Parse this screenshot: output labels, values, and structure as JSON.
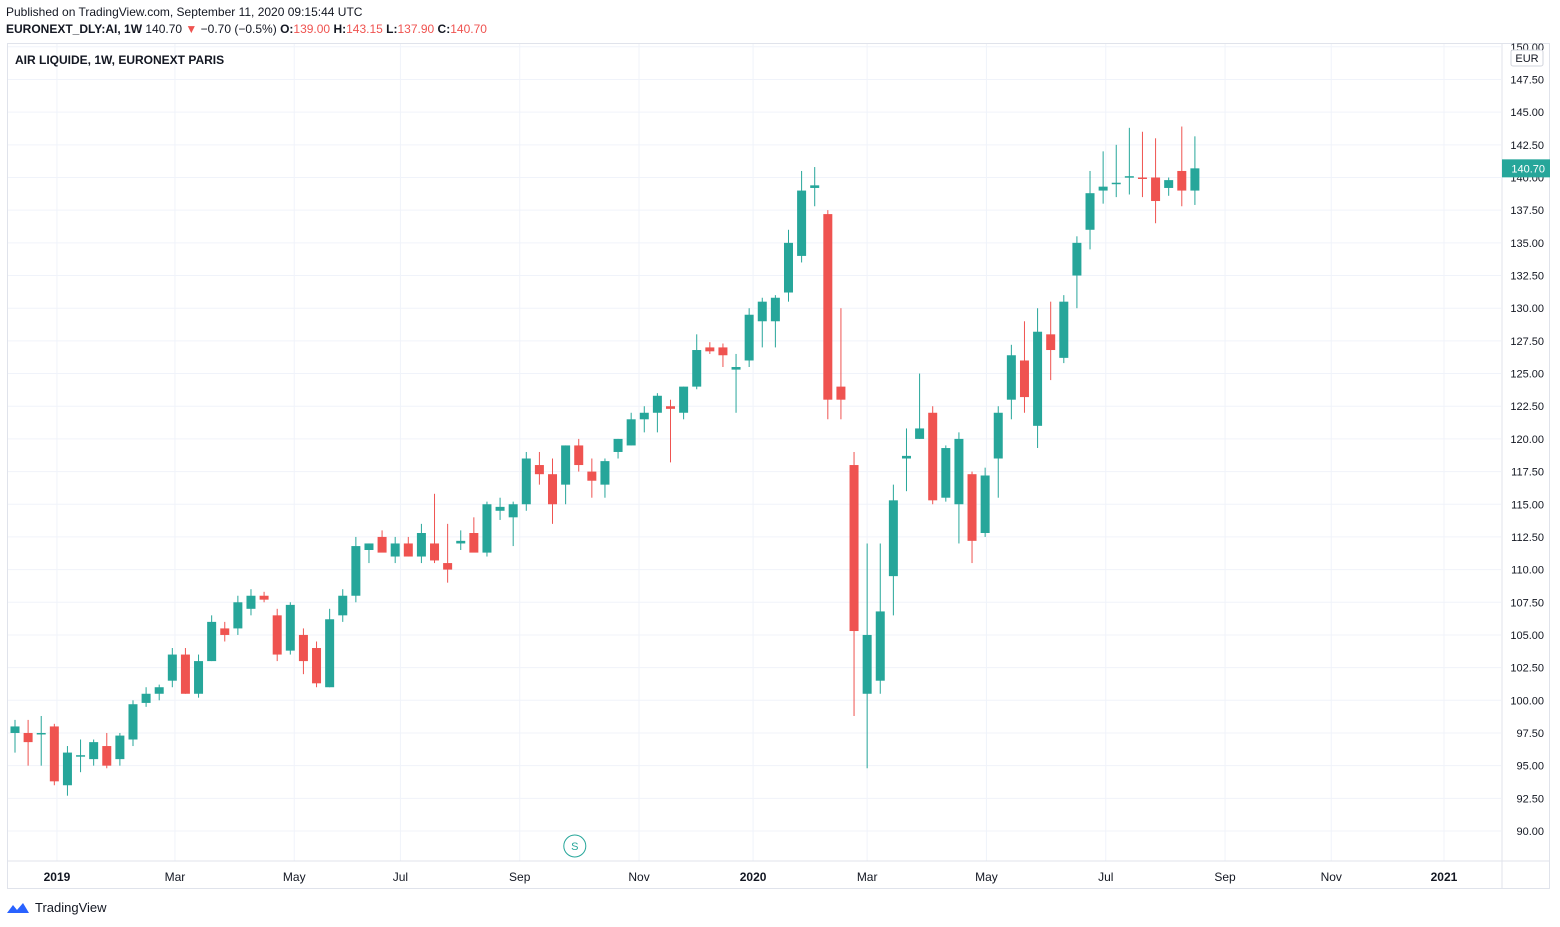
{
  "header": {
    "published": "Published on TradingView.com, September 11, 2020 09:15:44 UTC",
    "symbol": "EURONEXT_DLY:AI, 1W",
    "last": "140.70",
    "arrow": "▼",
    "change": "−0.70 (−0.5%)",
    "o_label": "O:",
    "o_value": "139.00",
    "h_label": "H:",
    "h_value": "143.15",
    "l_label": "L:",
    "l_value": "137.90",
    "c_label": "C:",
    "c_value": "140.70"
  },
  "footer": {
    "brand": "TradingView"
  },
  "colors": {
    "up": "#26a69a",
    "down": "#ef5350",
    "grid": "#f0f3fa",
    "text": "#131722"
  },
  "chart_data": {
    "type": "candlestick",
    "title": "AIR LIQUIDE, 1W, EURONEXT PARIS",
    "currency": "EUR",
    "last_price_label": "140.70",
    "ylim": [
      88.5,
      150
    ],
    "yticks": [
      90,
      92.5,
      95,
      97.5,
      100,
      102.5,
      105,
      107.5,
      110,
      112.5,
      115,
      117.5,
      120,
      122.5,
      125,
      127.5,
      130,
      132.5,
      135,
      137.5,
      140,
      142.5,
      145,
      147.5,
      150
    ],
    "xtick_labels": [
      {
        "label": "2019",
        "week": 3.2,
        "bold": true
      },
      {
        "label": "Mar",
        "week": 12.2
      },
      {
        "label": "May",
        "week": 21.3
      },
      {
        "label": "Jul",
        "week": 29.4
      },
      {
        "label": "Sep",
        "week": 38.5
      },
      {
        "label": "Nov",
        "week": 47.6
      },
      {
        "label": "2020",
        "week": 56.3,
        "bold": true
      },
      {
        "label": "Mar",
        "week": 65.0
      },
      {
        "label": "May",
        "week": 74.1
      },
      {
        "label": "Jul",
        "week": 83.2
      },
      {
        "label": "Sep",
        "week": 92.3
      },
      {
        "label": "Nov",
        "week": 100.4
      },
      {
        "label": "2021",
        "week": 109.0,
        "bold": true
      }
    ],
    "event_marker": {
      "label": "S",
      "week": 42.7
    },
    "candles": [
      [
        97.5,
        98.5,
        96.0,
        98.0
      ],
      [
        97.5,
        98.5,
        95.0,
        96.8
      ],
      [
        97.5,
        98.8,
        95.0,
        97.5
      ],
      [
        98.0,
        98.2,
        93.5,
        93.8
      ],
      [
        93.5,
        96.5,
        92.7,
        96.0
      ],
      [
        95.8,
        97.0,
        94.5,
        95.8
      ],
      [
        95.5,
        97.0,
        95.0,
        96.8
      ],
      [
        96.5,
        97.5,
        94.8,
        95.0
      ],
      [
        95.5,
        97.5,
        95.0,
        97.3
      ],
      [
        97.0,
        100.0,
        96.5,
        99.7
      ],
      [
        99.8,
        101.0,
        99.5,
        100.5
      ],
      [
        100.5,
        101.2,
        100.0,
        101.0
      ],
      [
        101.5,
        104.0,
        101.0,
        103.5
      ],
      [
        103.5,
        104.0,
        100.5,
        100.5
      ],
      [
        100.5,
        103.5,
        100.2,
        103.0
      ],
      [
        103.0,
        106.5,
        103.0,
        106.0
      ],
      [
        105.5,
        106.0,
        104.5,
        105.0
      ],
      [
        105.5,
        108.0,
        105.0,
        107.5
      ],
      [
        107.0,
        108.5,
        106.5,
        108.0
      ],
      [
        108.0,
        108.3,
        107.5,
        107.7
      ],
      [
        106.5,
        107.0,
        103.0,
        103.5
      ],
      [
        103.8,
        107.5,
        103.5,
        107.3
      ],
      [
        105.0,
        105.5,
        102.0,
        103.0
      ],
      [
        104.0,
        104.5,
        101.0,
        101.3
      ],
      [
        101.0,
        107.0,
        101.0,
        106.2
      ],
      [
        106.5,
        108.5,
        106.0,
        108.0
      ],
      [
        108.0,
        112.5,
        107.5,
        111.8
      ],
      [
        111.5,
        112.0,
        110.5,
        112.0
      ],
      [
        112.5,
        113.0,
        111.5,
        111.3
      ],
      [
        111.0,
        112.5,
        110.5,
        112.0
      ],
      [
        112.0,
        112.5,
        111.0,
        111.0
      ],
      [
        111.0,
        113.5,
        110.5,
        112.8
      ],
      [
        112.0,
        115.8,
        110.5,
        110.7
      ],
      [
        110.5,
        113.5,
        109.0,
        110.0
      ],
      [
        112.0,
        113.0,
        111.5,
        112.2
      ],
      [
        112.8,
        114.0,
        111.5,
        111.3
      ],
      [
        111.3,
        115.2,
        111.0,
        115.0
      ],
      [
        114.5,
        115.5,
        113.8,
        114.8
      ],
      [
        114.0,
        115.2,
        111.8,
        115.0
      ],
      [
        115.0,
        119.0,
        114.5,
        118.5
      ],
      [
        118.0,
        119.0,
        116.5,
        117.3
      ],
      [
        117.3,
        118.5,
        113.5,
        115.0
      ],
      [
        116.5,
        119.5,
        115.0,
        119.5
      ],
      [
        119.5,
        120.0,
        117.5,
        118.0
      ],
      [
        117.5,
        118.5,
        115.5,
        116.8
      ],
      [
        116.5,
        118.5,
        115.5,
        118.3
      ],
      [
        119.0,
        120.0,
        118.5,
        120.0
      ],
      [
        119.5,
        122.0,
        119.5,
        121.5
      ],
      [
        121.5,
        122.5,
        120.5,
        122.0
      ],
      [
        122.0,
        123.5,
        120.5,
        123.3
      ],
      [
        122.5,
        123.0,
        118.2,
        122.3
      ],
      [
        122.0,
        124.0,
        121.5,
        124.0
      ],
      [
        124.0,
        128.0,
        123.8,
        126.8
      ],
      [
        127.0,
        127.4,
        126.5,
        126.7
      ],
      [
        127.0,
        127.3,
        125.5,
        126.4
      ],
      [
        125.3,
        126.5,
        122.0,
        125.5
      ],
      [
        126.0,
        130.0,
        125.5,
        129.5
      ],
      [
        129.0,
        130.8,
        127.0,
        130.5
      ],
      [
        129.0,
        131.0,
        127.0,
        130.8
      ],
      [
        131.2,
        136.0,
        130.5,
        135.0
      ],
      [
        134.0,
        140.5,
        133.5,
        139.0
      ],
      [
        139.2,
        140.8,
        137.8,
        139.4
      ],
      [
        137.2,
        137.5,
        121.5,
        123.0
      ],
      [
        124.0,
        130.0,
        121.5,
        123.0
      ],
      [
        118.0,
        119.0,
        98.8,
        105.3
      ],
      [
        100.5,
        112.0,
        94.8,
        105.0
      ],
      [
        101.5,
        112.0,
        100.5,
        106.8
      ],
      [
        109.5,
        116.5,
        106.5,
        115.3
      ],
      [
        118.5,
        120.8,
        116.0,
        118.7
      ],
      [
        120.0,
        125.0,
        120.0,
        120.8
      ],
      [
        122.0,
        122.5,
        115.0,
        115.3
      ],
      [
        115.5,
        119.5,
        115.2,
        119.3
      ],
      [
        115.0,
        120.5,
        112.0,
        120.0
      ],
      [
        117.3,
        117.5,
        110.5,
        112.2
      ],
      [
        112.8,
        117.8,
        112.5,
        117.2
      ],
      [
        118.5,
        122.5,
        115.5,
        122.0
      ],
      [
        123.0,
        127.2,
        121.5,
        126.4
      ],
      [
        126.0,
        129.0,
        122.0,
        123.2
      ],
      [
        121.0,
        130.0,
        119.3,
        128.2
      ],
      [
        128.0,
        130.5,
        124.5,
        126.8
      ],
      [
        126.2,
        131.0,
        125.8,
        130.5
      ],
      [
        132.5,
        135.5,
        130.0,
        135.0
      ],
      [
        136.0,
        140.5,
        134.5,
        138.8
      ],
      [
        139.0,
        142.0,
        138.0,
        139.3
      ],
      [
        139.5,
        142.5,
        138.5,
        139.6
      ],
      [
        140.1,
        143.8,
        138.7,
        140.1
      ],
      [
        140.0,
        143.5,
        138.5,
        139.9
      ],
      [
        140.0,
        143.0,
        136.5,
        138.2
      ],
      [
        139.2,
        140.0,
        138.6,
        139.8
      ],
      [
        140.5,
        143.9,
        137.8,
        139.0
      ],
      [
        139.0,
        143.15,
        137.9,
        140.7
      ]
    ]
  }
}
